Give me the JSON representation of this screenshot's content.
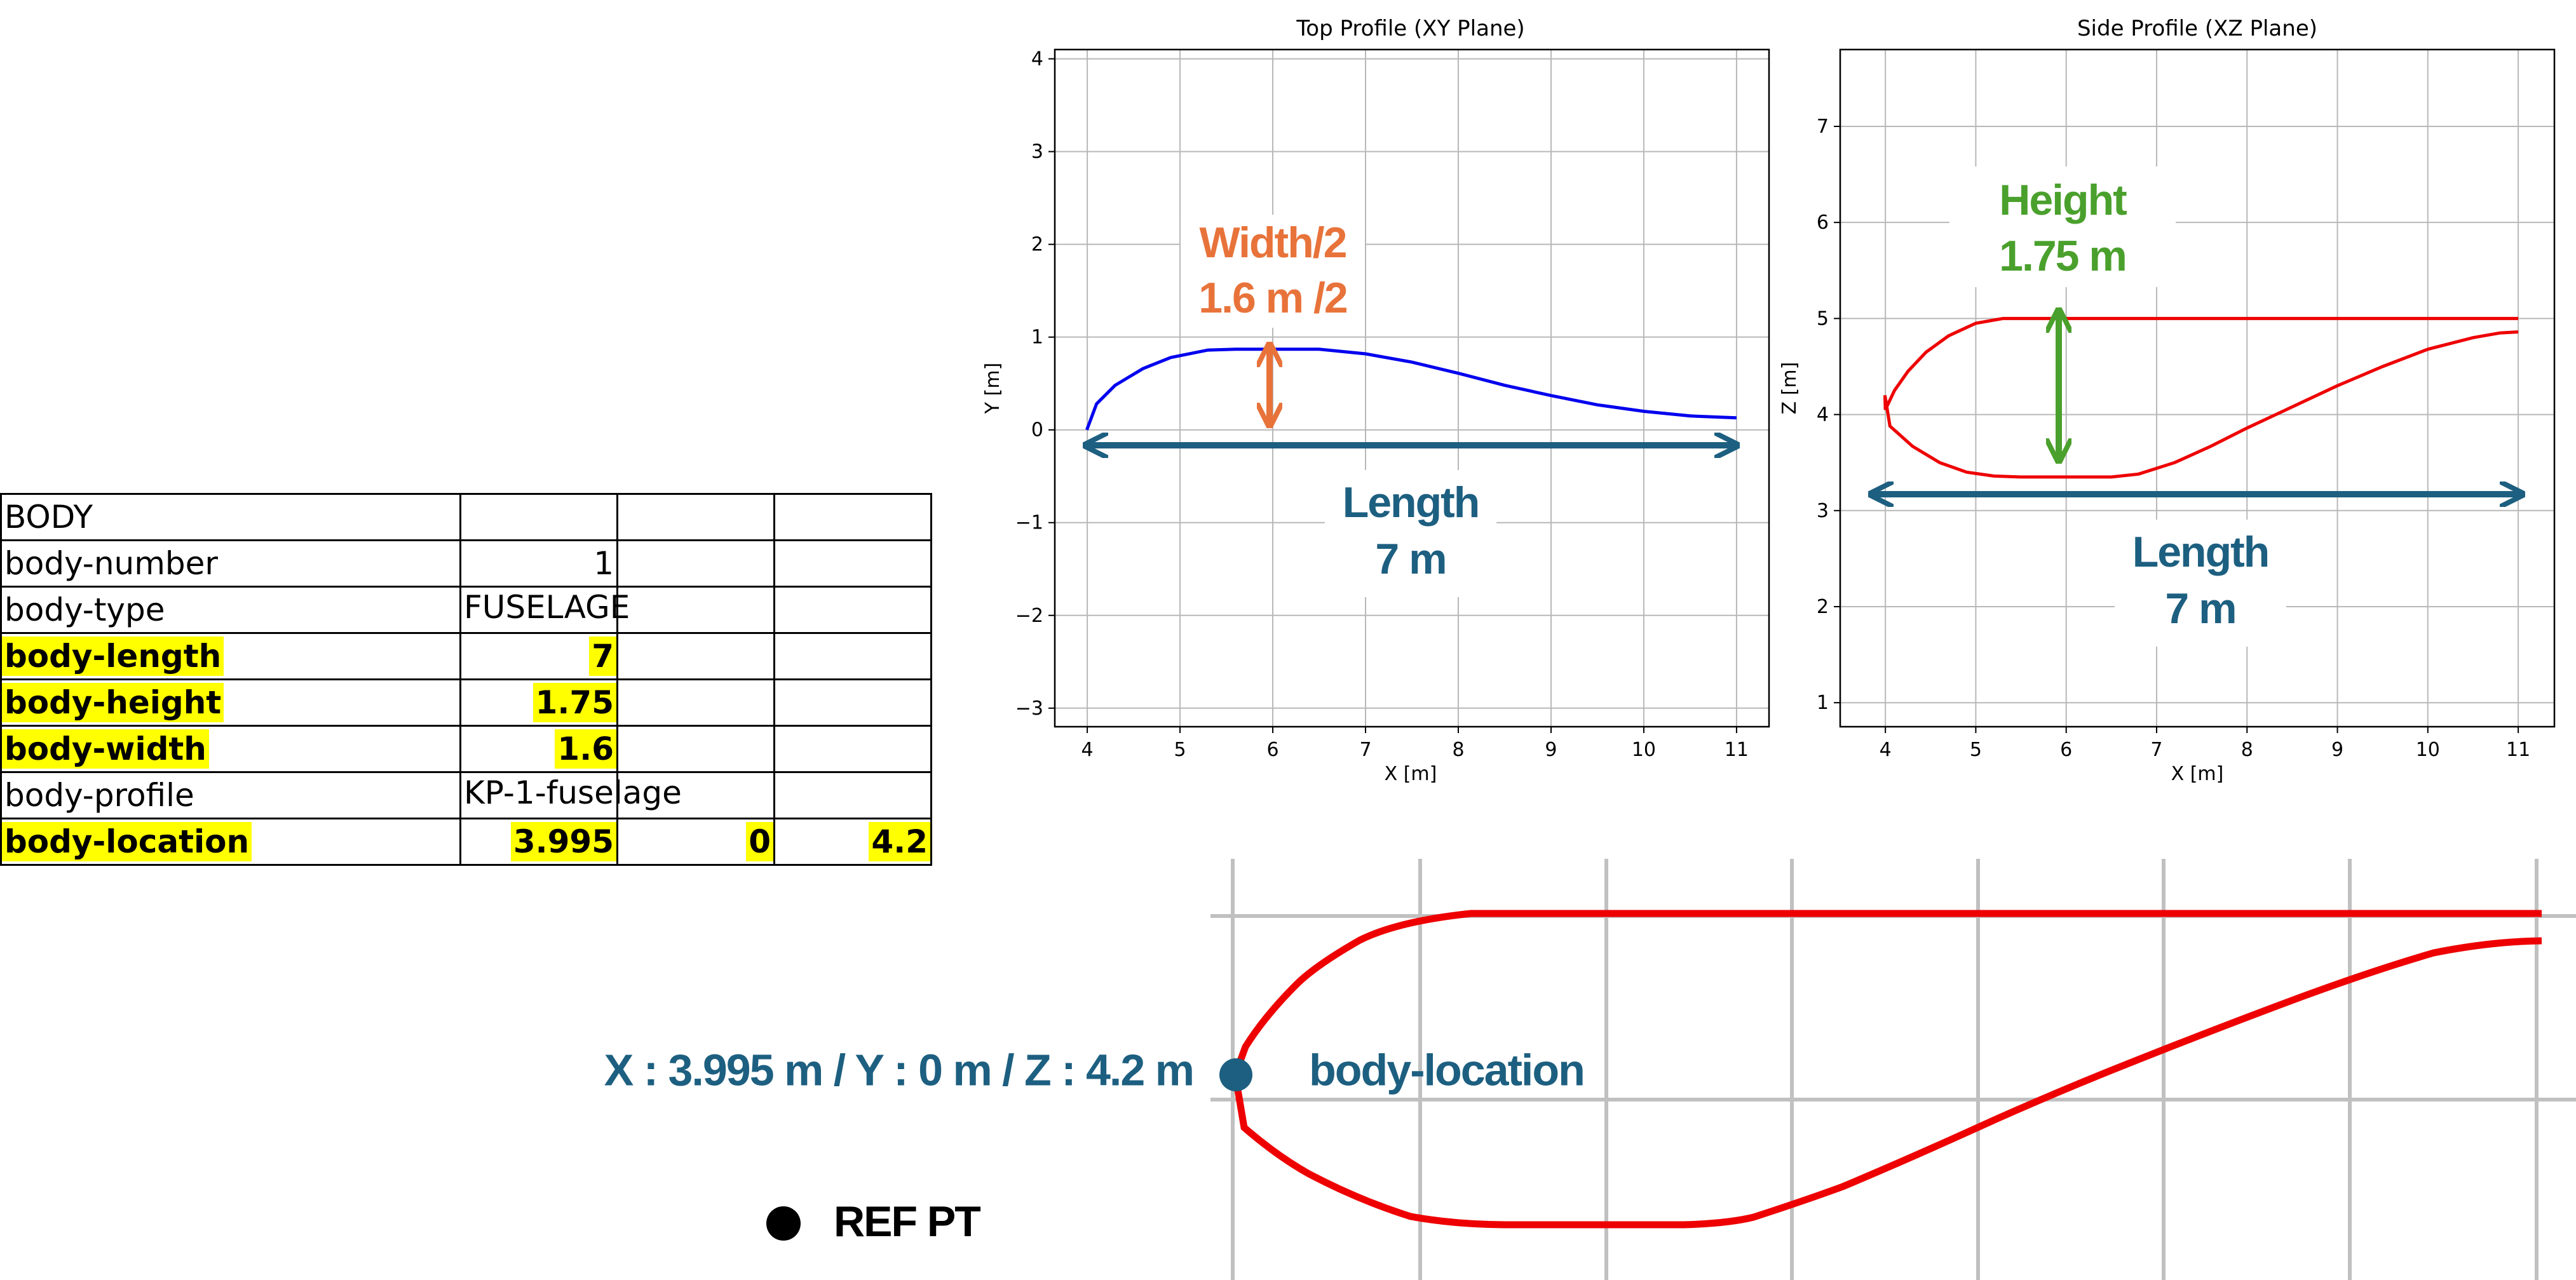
{
  "sheet": {
    "rows": [
      {
        "name": "BODY",
        "v1": "",
        "v2": "",
        "v3": "",
        "highlight": false
      },
      {
        "name": "body-number",
        "v1": "1",
        "v2": "",
        "v3": "",
        "highlight": false
      },
      {
        "name": "body-type",
        "v1": "FUSELAGE",
        "v2": "",
        "v3": "",
        "highlight": false
      },
      {
        "name": "body-length",
        "v1": "7",
        "v2": "",
        "v3": "",
        "highlight": true
      },
      {
        "name": "body-height",
        "v1": "1.75",
        "v2": "",
        "v3": "",
        "highlight": true
      },
      {
        "name": "body-width",
        "v1": "1.6",
        "v2": "",
        "v3": "",
        "highlight": true
      },
      {
        "name": "body-profile",
        "v1": "KP-1-fuselage",
        "v2": "",
        "v3": "",
        "highlight": false
      },
      {
        "name": "body-location",
        "v1": "3.995",
        "v2": "0",
        "v3": "4.2",
        "highlight": true
      }
    ],
    "highlight_color": "#ffff00"
  },
  "chart_data": [
    {
      "type": "line",
      "title": "Top Profile (XY Plane)",
      "xlabel": "X [m]",
      "ylabel": "Y [m]",
      "xlim": [
        3.65,
        11.35
      ],
      "ylim": [
        -3.2,
        4.1
      ],
      "xticks": [
        "4",
        "5",
        "6",
        "7",
        "8",
        "9",
        "10",
        "11"
      ],
      "yticks": [
        "−3",
        "−2",
        "−1",
        "0",
        "1",
        "2",
        "3",
        "4"
      ],
      "grid": true,
      "series": [
        {
          "color": "#0000ee",
          "x": [
            3.995,
            4.1,
            4.3,
            4.6,
            4.9,
            5.3,
            5.6,
            6.0,
            6.5,
            7.0,
            7.5,
            8.0,
            8.5,
            9.0,
            9.5,
            10.0,
            10.5,
            11.0
          ],
          "y": [
            0.0,
            0.28,
            0.48,
            0.66,
            0.78,
            0.86,
            0.87,
            0.87,
            0.87,
            0.82,
            0.73,
            0.61,
            0.48,
            0.37,
            0.27,
            0.2,
            0.15,
            0.13
          ]
        }
      ],
      "annotations": [
        {
          "text": [
            "Width/2",
            "1.6 m /2"
          ],
          "color": "#e8733a"
        },
        {
          "text": [
            "Length",
            "7 m"
          ],
          "color": "#1d5f80"
        }
      ]
    },
    {
      "type": "line",
      "title": "Side Profile (XZ Plane)",
      "xlabel": "X [m]",
      "ylabel": "Z [m]",
      "xlim": [
        3.5,
        11.4
      ],
      "ylim": [
        0.75,
        7.8
      ],
      "xticks": [
        "4",
        "5",
        "6",
        "7",
        "8",
        "9",
        "10",
        "11"
      ],
      "yticks": [
        "1",
        "2",
        "3",
        "4",
        "5",
        "6",
        "7"
      ],
      "grid": true,
      "series": [
        {
          "color": "#ee0000",
          "x": [
            11.0,
            5.3,
            5.0,
            4.7,
            4.45,
            4.25,
            4.1,
            4.0,
            3.995,
            4.05,
            4.3,
            4.6,
            4.9,
            5.2,
            5.5,
            6.0,
            6.5,
            6.8,
            7.2,
            7.6,
            8.0,
            8.5,
            9.0,
            9.5,
            10.0,
            10.5,
            10.8,
            11.0
          ],
          "y": [
            5.0,
            5.0,
            4.95,
            4.82,
            4.65,
            4.45,
            4.25,
            4.05,
            4.2,
            3.88,
            3.67,
            3.5,
            3.4,
            3.36,
            3.35,
            3.35,
            3.35,
            3.38,
            3.5,
            3.67,
            3.86,
            4.08,
            4.3,
            4.5,
            4.68,
            4.8,
            4.85,
            4.86
          ]
        }
      ],
      "annotations": [
        {
          "text": [
            "Height",
            "1.75 m"
          ],
          "color": "#4aa02c"
        },
        {
          "text": [
            "Length",
            "7 m"
          ],
          "color": "#1d5f80"
        }
      ]
    }
  ],
  "detail": {
    "coord_label": "X : 3.995 m / Y : 0 m / Z : 4.2 m",
    "location_label": "body-location",
    "ref_label": "REF PT",
    "accent_color": "#1d5f80",
    "curve_color": "#ee0000"
  }
}
